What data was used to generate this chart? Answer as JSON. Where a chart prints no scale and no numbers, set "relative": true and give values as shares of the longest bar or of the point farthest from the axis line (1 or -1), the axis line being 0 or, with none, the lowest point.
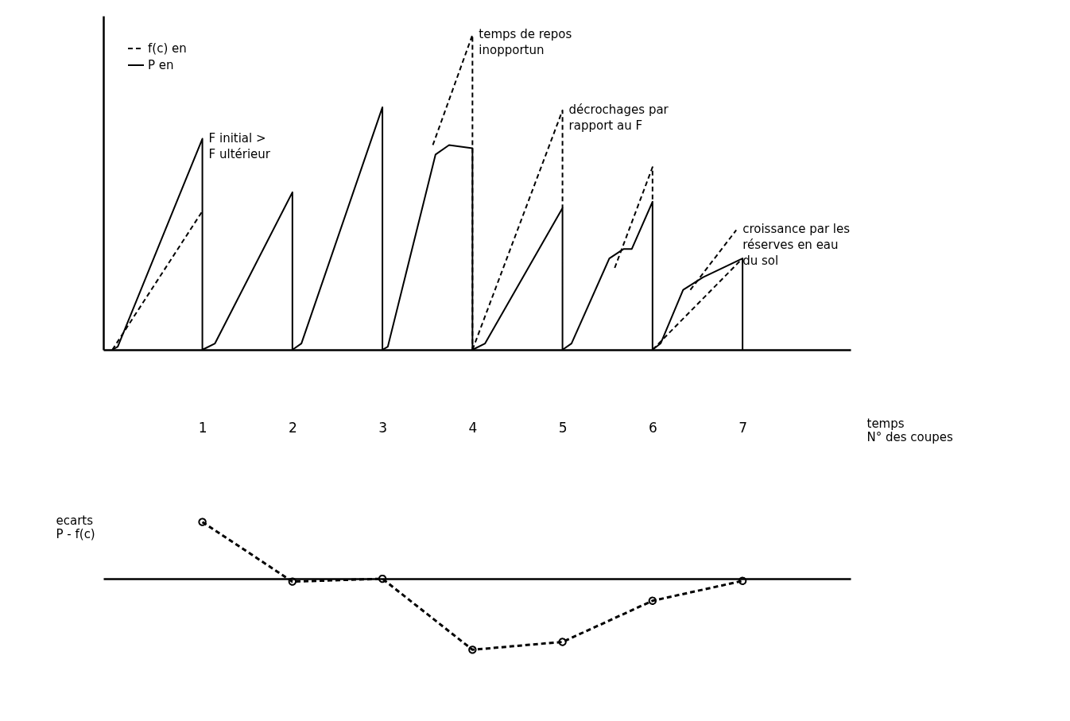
{
  "chart_data": [
    {
      "type": "line",
      "relative": true,
      "xlim": [
        -0.1,
        8.2
      ],
      "tick_labels": "x",
      "legend": "top left",
      "xlabel": "temps\nN° des coupes",
      "xticks": [
        1,
        2,
        3,
        4,
        5,
        6,
        7
      ],
      "series": [
        {
          "name": "f(c) en",
          "color": "#000000",
          "line_style": "dashed",
          "x": [
            0,
            1,
            null,
            3.56,
            4,
            4,
            null,
            4,
            5,
            5,
            null,
            5.58,
            6,
            6,
            null,
            6,
            7,
            null,
            6.42,
            6.93
          ],
          "values": [
            0,
            0.44,
            null,
            0.65,
            1,
            0,
            null,
            0,
            0.76,
            0.45,
            null,
            0.26,
            0.58,
            0.47,
            null,
            0,
            0.29,
            null,
            0.19,
            0.38
          ]
        },
        {
          "name": "P en",
          "color": "#000000",
          "line_style": "solid",
          "x": [
            0,
            0.06,
            1,
            1,
            1.14,
            2,
            2,
            2.1,
            3,
            3,
            3.06,
            3.59,
            3.74,
            4,
            4,
            4.14,
            5,
            5,
            5.1,
            5.52,
            5.68,
            5.77,
            6,
            6,
            6.09,
            6.34,
            6.56,
            7,
            7
          ],
          "values": [
            0,
            0.01,
            0.67,
            0,
            0.02,
            0.5,
            0,
            0.02,
            0.77,
            0,
            0.01,
            0.62,
            0.65,
            0.64,
            0,
            0.02,
            0.45,
            0,
            0.02,
            0.29,
            0.32,
            0.32,
            0.47,
            0,
            0.02,
            0.19,
            0.23,
            0.29,
            0
          ]
        }
      ],
      "annotations": [
        {
          "text": "F initial >\nF ultérieur",
          "x": 1,
          "y": 0.67
        },
        {
          "text": "temps de repos\ninopportun",
          "x": 4,
          "y": 1
        },
        {
          "text": "décrochages par\nrapport au F",
          "x": 5,
          "y": 0.76
        },
        {
          "text": "croissance par les\nréserves en eau\ndu sol",
          "x": 6.93,
          "y": 0.38
        }
      ]
    },
    {
      "type": "line",
      "relative": true,
      "xlim": [
        -0.1,
        8.2
      ],
      "tick_labels": false,
      "marker": "circle",
      "line_style": "dashed",
      "ylabel": "ecarts\nP - f(c)",
      "series": [
        {
          "color": "#000000",
          "x": [
            1,
            2,
            3,
            4,
            5,
            6,
            7
          ],
          "values": [
            0.8,
            -0.04,
            0,
            -1,
            -0.89,
            -0.31,
            -0.03
          ]
        }
      ]
    }
  ]
}
